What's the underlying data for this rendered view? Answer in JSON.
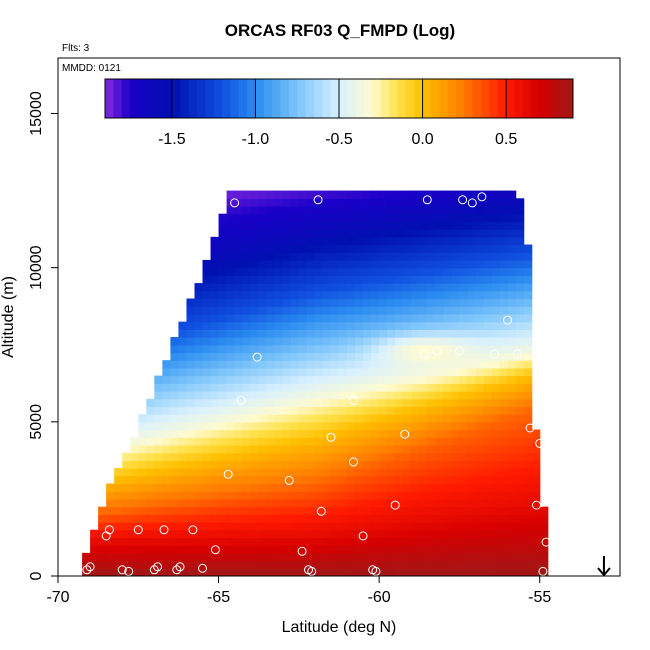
{
  "chart_data": {
    "type": "heatmap",
    "title": "ORCAS RF03 Q_FMPD (Log)",
    "flts_note": "Flts: 3",
    "mmdd_note": "MMDD: 0121",
    "xlabel": "Latitude (deg N)",
    "ylabel": "Altitude (m)",
    "xlim": [
      -70,
      -52.5
    ],
    "ylim": [
      0,
      16800
    ],
    "x_ticks": [
      -70,
      -65,
      -60,
      -55
    ],
    "x_tick_labels": [
      "-70",
      "-65",
      "-60",
      "-55"
    ],
    "y_ticks": [
      0,
      5000,
      10000,
      15000
    ],
    "y_tick_labels": [
      "0",
      "5000",
      "10000",
      "15000"
    ],
    "colorbar": {
      "range": [
        -1.9,
        0.9
      ],
      "ticks": [
        -1.5,
        -1.0,
        -0.5,
        0.0,
        0.5
      ],
      "tick_labels": [
        "-1.5",
        "-1.0",
        "-0.5",
        "0.0",
        "0.5"
      ],
      "color_stops": [
        {
          "v": -1.9,
          "c": "#8a2be2"
        },
        {
          "v": -1.75,
          "c": "#1a00c8"
        },
        {
          "v": -1.5,
          "c": "#0010b0"
        },
        {
          "v": -1.2,
          "c": "#1050e0"
        },
        {
          "v": -1.0,
          "c": "#2a8cf0"
        },
        {
          "v": -0.75,
          "c": "#7cc4fa"
        },
        {
          "v": -0.5,
          "c": "#d8f0ff"
        },
        {
          "v": -0.3,
          "c": "#fffbd0"
        },
        {
          "v": -0.15,
          "c": "#ffe14a"
        },
        {
          "v": 0.0,
          "c": "#ffbf00"
        },
        {
          "v": 0.25,
          "c": "#ff7a00"
        },
        {
          "v": 0.5,
          "c": "#ff1a00"
        },
        {
          "v": 0.7,
          "c": "#d60000"
        },
        {
          "v": 0.9,
          "c": "#a01818"
        }
      ]
    },
    "field_extent": {
      "left_boundary": [
        {
          "alt": 0,
          "lat": -69.2
        },
        {
          "alt": 2200,
          "lat": -68.5
        },
        {
          "alt": 4500,
          "lat": -67.5
        },
        {
          "alt": 7000,
          "lat": -66.5
        },
        {
          "alt": 9500,
          "lat": -65.5
        },
        {
          "alt": 12300,
          "lat": -64.5
        }
      ],
      "right_boundary": [
        {
          "alt": 0,
          "lat": -54.9
        },
        {
          "alt": 2200,
          "lat": -55.0
        },
        {
          "alt": 6000,
          "lat": -55.4
        },
        {
          "alt": 9500,
          "lat": -55.3
        },
        {
          "alt": 12500,
          "lat": -55.8
        }
      ],
      "top_alt": 12300
    },
    "field_structure": {
      "iso_contours": [
        {
          "level": 0.9,
          "points": [
            {
              "lat": -69,
              "alt": 0
            },
            {
              "lat": -55,
              "alt": 0
            }
          ]
        },
        {
          "level": 0.6,
          "points": [
            {
              "lat": -69,
              "alt": 1200
            },
            {
              "lat": -62,
              "alt": 1400
            },
            {
              "lat": -55,
              "alt": 2500
            }
          ]
        },
        {
          "level": 0.3,
          "points": [
            {
              "lat": -69,
              "alt": 2000
            },
            {
              "lat": -62,
              "alt": 3000
            },
            {
              "lat": -55,
              "alt": 5500
            }
          ]
        },
        {
          "level": 0.0,
          "points": [
            {
              "lat": -69,
              "alt": 3000
            },
            {
              "lat": -62,
              "alt": 4500
            },
            {
              "lat": -55,
              "alt": 6600
            }
          ]
        },
        {
          "level": -0.35,
          "points": [
            {
              "lat": -69,
              "alt": 4000
            },
            {
              "lat": -62,
              "alt": 5800
            },
            {
              "lat": -55,
              "alt": 7300
            }
          ]
        },
        {
          "level": -0.75,
          "points": [
            {
              "lat": -69,
              "alt": 5500
            },
            {
              "lat": -62,
              "alt": 7400
            },
            {
              "lat": -55,
              "alt": 8800
            }
          ]
        },
        {
          "level": -1.2,
          "points": [
            {
              "lat": -69,
              "alt": 7200
            },
            {
              "lat": -62,
              "alt": 9200
            },
            {
              "lat": -55,
              "alt": 10500
            }
          ]
        },
        {
          "level": -1.6,
          "points": [
            {
              "lat": -69,
              "alt": 9500
            },
            {
              "lat": -62,
              "alt": 11200
            },
            {
              "lat": -55,
              "alt": 12300
            }
          ]
        },
        {
          "level": -1.9,
          "points": [
            {
              "lat": -69,
              "alt": 12300
            },
            {
              "lat": -62,
              "alt": 13000
            },
            {
              "lat": -55,
              "alt": 13500
            }
          ]
        }
      ],
      "features": [
        {
          "lat": -58.5,
          "alt": 7300,
          "value": -0.3,
          "width_lat": 1.5,
          "height_m": 500
        }
      ]
    },
    "sample_points": [
      {
        "x": -69.1,
        "y": 200
      },
      {
        "x": -69.0,
        "y": 300
      },
      {
        "x": -68.5,
        "y": 1300
      },
      {
        "x": -68.4,
        "y": 1500
      },
      {
        "x": -68.0,
        "y": 200
      },
      {
        "x": -67.8,
        "y": 150
      },
      {
        "x": -67.5,
        "y": 1500
      },
      {
        "x": -67.0,
        "y": 200
      },
      {
        "x": -66.9,
        "y": 300
      },
      {
        "x": -66.7,
        "y": 1500
      },
      {
        "x": -66.3,
        "y": 200
      },
      {
        "x": -66.2,
        "y": 300
      },
      {
        "x": -65.8,
        "y": 1500
      },
      {
        "x": -65.5,
        "y": 250
      },
      {
        "x": -65.1,
        "y": 850
      },
      {
        "x": -64.7,
        "y": 3300
      },
      {
        "x": -64.5,
        "y": 12100
      },
      {
        "x": -64.3,
        "y": 5700
      },
      {
        "x": -63.8,
        "y": 7100
      },
      {
        "x": -62.8,
        "y": 3100
      },
      {
        "x": -62.4,
        "y": 800
      },
      {
        "x": -62.2,
        "y": 200
      },
      {
        "x": -62.1,
        "y": 150
      },
      {
        "x": -61.9,
        "y": 12200
      },
      {
        "x": -61.8,
        "y": 2100
      },
      {
        "x": -61.5,
        "y": 4500
      },
      {
        "x": -60.8,
        "y": 5700
      },
      {
        "x": -60.8,
        "y": 3700
      },
      {
        "x": -60.5,
        "y": 1300
      },
      {
        "x": -60.2,
        "y": 200
      },
      {
        "x": -60.1,
        "y": 150
      },
      {
        "x": -59.5,
        "y": 2300
      },
      {
        "x": -59.2,
        "y": 4600
      },
      {
        "x": -58.6,
        "y": 7200
      },
      {
        "x": -58.5,
        "y": 12200
      },
      {
        "x": -58.2,
        "y": 7300
      },
      {
        "x": -57.5,
        "y": 7300
      },
      {
        "x": -57.4,
        "y": 12200
      },
      {
        "x": -57.1,
        "y": 12100
      },
      {
        "x": -56.8,
        "y": 12300
      },
      {
        "x": -56.4,
        "y": 7200
      },
      {
        "x": -56.0,
        "y": 8300
      },
      {
        "x": -55.7,
        "y": 7200
      },
      {
        "x": -55.4,
        "y": 12500
      },
      {
        "x": -55.3,
        "y": 4800
      },
      {
        "x": -55.1,
        "y": 2300
      },
      {
        "x": -55.0,
        "y": 4300
      },
      {
        "x": -54.9,
        "y": 150
      },
      {
        "x": -54.8,
        "y": 1100
      }
    ],
    "marker": {
      "lat": -53.0,
      "symbol": "down-arrow"
    },
    "grid": false,
    "legend": "colorbar top inside plot"
  }
}
